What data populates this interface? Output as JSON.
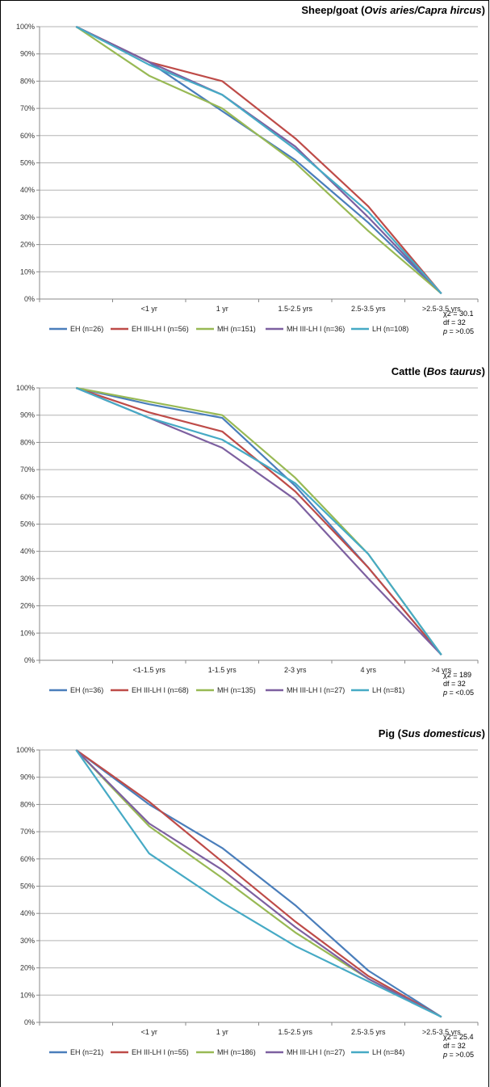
{
  "chart_data": [
    {
      "type": "line",
      "title_prefix": "Sheep/goat (",
      "title_italic": "Ovis aries/Capra hircus",
      "title_suffix": ")",
      "categories": [
        "",
        "<1 yr",
        "1 yr",
        "1.5-2.5 yrs",
        "2.5-3.5 yrs",
        ">2.5-3.5 yrs"
      ],
      "ylim": [
        0,
        100
      ],
      "yticks": [
        "0%",
        "10%",
        "20%",
        "30%",
        "40%",
        "50%",
        "60%",
        "70%",
        "80%",
        "90%",
        "100%"
      ],
      "grid": true,
      "legend_position": "bottom",
      "series": [
        {
          "name": "EH (n=26)",
          "color": "#4A7EBB",
          "values": [
            100,
            87,
            69,
            51,
            28,
            2
          ]
        },
        {
          "name": "EH III-LH I (n=56)",
          "color": "#BE4B48",
          "values": [
            100,
            87,
            80,
            59,
            34,
            2
          ]
        },
        {
          "name": "MH (n=151)",
          "color": "#98B954",
          "values": [
            100,
            82,
            70,
            50,
            25,
            2
          ]
        },
        {
          "name": "MH III-LH I (n=36)",
          "color": "#7D60A0",
          "values": [
            100,
            87,
            75,
            56,
            30,
            2
          ]
        },
        {
          "name": "LH (n=108)",
          "color": "#46AAC5",
          "values": [
            100,
            86,
            75,
            55,
            32,
            2
          ]
        }
      ],
      "stats": {
        "chi2": "χ2 = 30.1",
        "df": "df = 32",
        "p_label": "p",
        "p_value": " = >0.05"
      }
    },
    {
      "type": "line",
      "title_prefix": "Cattle (",
      "title_italic": "Bos taurus",
      "title_suffix": ")",
      "categories": [
        "",
        "<1-1.5 yrs",
        "1-1.5 yrs",
        "2-3 yrs",
        "4 yrs",
        ">4 yrs"
      ],
      "ylim": [
        0,
        100
      ],
      "yticks": [
        "0%",
        "10%",
        "20%",
        "30%",
        "40%",
        "50%",
        "60%",
        "70%",
        "80%",
        "90%",
        "100%"
      ],
      "grid": true,
      "legend_position": "bottom",
      "series": [
        {
          "name": "EH (n=36)",
          "color": "#4A7EBB",
          "values": [
            100,
            94,
            89,
            64,
            34,
            2
          ]
        },
        {
          "name": "EH III-LH I (n=68)",
          "color": "#BE4B48",
          "values": [
            100,
            91,
            84,
            62,
            34,
            2
          ]
        },
        {
          "name": "MH (n=135)",
          "color": "#98B954",
          "values": [
            100,
            95,
            90,
            67,
            39,
            2
          ]
        },
        {
          "name": "MH III-LH I (n=27)",
          "color": "#7D60A0",
          "values": [
            100,
            89,
            78,
            59,
            30,
            2
          ]
        },
        {
          "name": "LH (n=81)",
          "color": "#46AAC5",
          "values": [
            100,
            89,
            81,
            65,
            39,
            2
          ]
        }
      ],
      "stats": {
        "chi2": "χ2 = 189",
        "df": "df = 32",
        "p_label": "p",
        "p_value": " = <0.05"
      }
    },
    {
      "type": "line",
      "title_prefix": "Pig (",
      "title_italic": "Sus domesticus",
      "title_suffix": ")",
      "categories": [
        "",
        "<1 yr",
        "1 yr",
        "1.5-2.5 yrs",
        "2.5-3.5 yrs",
        ">2.5-3.5 yrs"
      ],
      "ylim": [
        0,
        100
      ],
      "yticks": [
        "0%",
        "10%",
        "20%",
        "30%",
        "40%",
        "50%",
        "60%",
        "70%",
        "80%",
        "90%",
        "100%"
      ],
      "grid": true,
      "legend_position": "bottom",
      "series": [
        {
          "name": "EH (n=21)",
          "color": "#4A7EBB",
          "values": [
            100,
            80,
            64,
            43,
            19,
            2
          ]
        },
        {
          "name": "EH III-LH I (n=55)",
          "color": "#BE4B48",
          "values": [
            100,
            81,
            59,
            37,
            17,
            2
          ]
        },
        {
          "name": "MH (n=186)",
          "color": "#98B954",
          "values": [
            100,
            72,
            53,
            33,
            16,
            2
          ]
        },
        {
          "name": "MH III-LH I (n=27)",
          "color": "#7D60A0",
          "values": [
            100,
            73,
            56,
            35,
            16,
            2
          ]
        },
        {
          "name": "LH (n=84)",
          "color": "#46AAC5",
          "values": [
            100,
            62,
            44,
            28,
            15,
            2
          ]
        }
      ],
      "stats": {
        "chi2": "χ2 = 25.4",
        "df": "df = 32",
        "p_label": "p",
        "p_value": " = >0.05"
      }
    }
  ]
}
